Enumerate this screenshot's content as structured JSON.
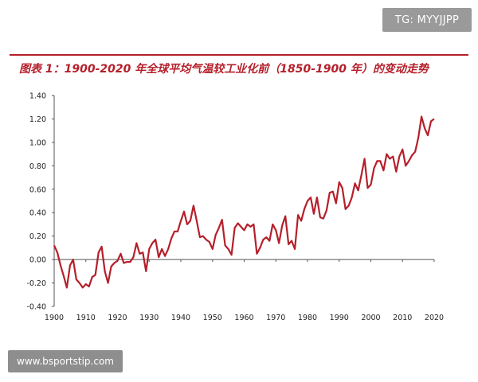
{
  "badge": "TG: MYYJJPP",
  "watermark": "www.bsportstip.com",
  "chart_data": {
    "type": "line",
    "title": "图表 1：1900-2020 年全球平均气温较工业化前（1850-1900 年）的变动走势",
    "xlabel": "",
    "ylabel": "",
    "xlim": [
      1900,
      2020
    ],
    "ylim": [
      -0.4,
      1.4
    ],
    "x_ticks": [
      1900,
      1910,
      1920,
      1930,
      1940,
      1950,
      1960,
      1970,
      1980,
      1990,
      2000,
      2010,
      2020
    ],
    "y_ticks": [
      "1.40",
      "1.20",
      "1.00",
      "0.80",
      "0.60",
      "0.40",
      "0.20",
      "0.00",
      "-0.20",
      "-0.40"
    ],
    "grid": false,
    "line_color": "#b51f2a",
    "series": [
      {
        "x": [
          1900,
          1901,
          1902,
          1903,
          1904,
          1905,
          1906,
          1907,
          1908,
          1909,
          1910,
          1911,
          1912,
          1913,
          1914,
          1915,
          1916,
          1917,
          1918,
          1919,
          1920,
          1921,
          1922,
          1923,
          1924,
          1925,
          1926,
          1927,
          1928,
          1929,
          1930,
          1931,
          1932,
          1933,
          1934,
          1935,
          1936,
          1937,
          1938,
          1939,
          1940,
          1941,
          1942,
          1943,
          1944,
          1945,
          1946,
          1947,
          1948,
          1949,
          1950,
          1951,
          1952,
          1953,
          1954,
          1955,
          1956,
          1957,
          1958,
          1959,
          1960,
          1961,
          1962,
          1963,
          1964,
          1965,
          1966,
          1967,
          1968,
          1969,
          1970,
          1971,
          1972,
          1973,
          1974,
          1975,
          1976,
          1977,
          1978,
          1979,
          1980,
          1981,
          1982,
          1983,
          1984,
          1985,
          1986,
          1987,
          1988,
          1989,
          1990,
          1991,
          1992,
          1993,
          1994,
          1995,
          1996,
          1997,
          1998,
          1999,
          2000,
          2001,
          2002,
          2003,
          2004,
          2005,
          2006,
          2007,
          2008,
          2009,
          2010,
          2011,
          2012,
          2013,
          2014,
          2015,
          2016,
          2017,
          2018,
          2019,
          2020
        ],
        "y": [
          0.12,
          0.06,
          -0.05,
          -0.14,
          -0.24,
          -0.05,
          0.0,
          -0.17,
          -0.2,
          -0.24,
          -0.21,
          -0.23,
          -0.15,
          -0.13,
          0.06,
          0.11,
          -0.1,
          -0.2,
          -0.06,
          -0.03,
          -0.01,
          0.05,
          -0.03,
          -0.02,
          -0.02,
          0.02,
          0.14,
          0.05,
          0.06,
          -0.1,
          0.09,
          0.14,
          0.17,
          0.02,
          0.09,
          0.03,
          0.09,
          0.18,
          0.24,
          0.24,
          0.33,
          0.41,
          0.3,
          0.33,
          0.46,
          0.33,
          0.19,
          0.2,
          0.17,
          0.15,
          0.09,
          0.21,
          0.27,
          0.34,
          0.12,
          0.09,
          0.04,
          0.27,
          0.31,
          0.28,
          0.25,
          0.3,
          0.28,
          0.3,
          0.05,
          0.1,
          0.17,
          0.19,
          0.16,
          0.3,
          0.25,
          0.14,
          0.29,
          0.37,
          0.13,
          0.16,
          0.09,
          0.38,
          0.33,
          0.43,
          0.5,
          0.53,
          0.39,
          0.53,
          0.36,
          0.35,
          0.42,
          0.57,
          0.58,
          0.48,
          0.66,
          0.61,
          0.43,
          0.46,
          0.53,
          0.65,
          0.59,
          0.72,
          0.86,
          0.61,
          0.64,
          0.78,
          0.84,
          0.84,
          0.76,
          0.9,
          0.86,
          0.88,
          0.75,
          0.88,
          0.94,
          0.8,
          0.84,
          0.89,
          0.92,
          1.04,
          1.22,
          1.12,
          1.06,
          1.18,
          1.2
        ]
      }
    ]
  }
}
